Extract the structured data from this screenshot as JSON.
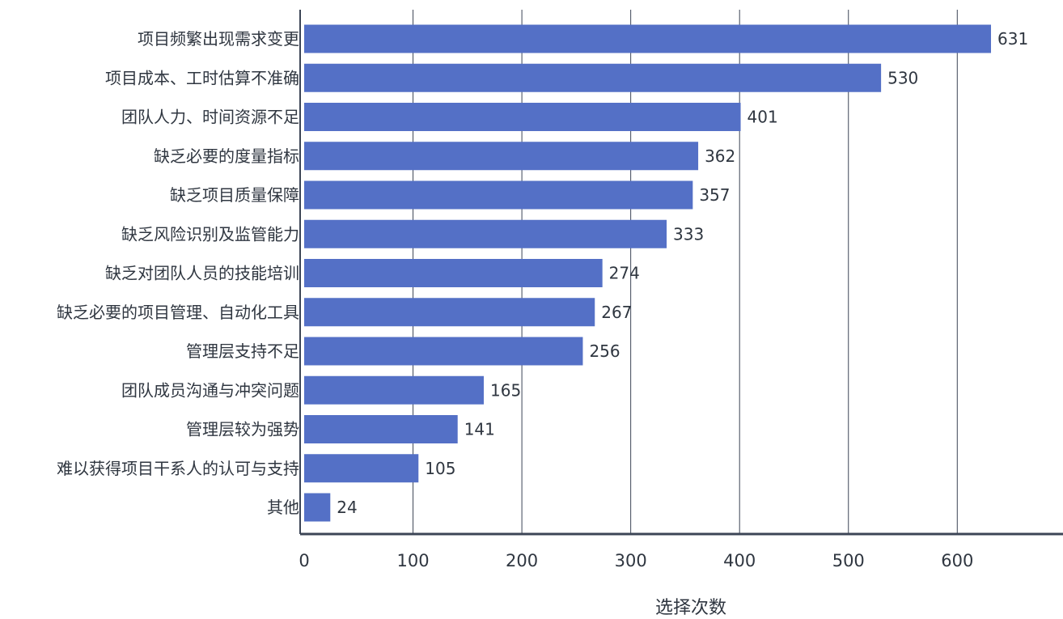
{
  "chart_data": {
    "type": "bar",
    "orientation": "horizontal",
    "categories": [
      "项目频繁出现需求变更",
      "项目成本、工时估算不准确",
      "团队人力、时间资源不足",
      "缺乏必要的度量指标",
      "缺乏项目质量保障",
      "缺乏风险识别及监管能力",
      "缺乏对团队人员的技能培训",
      "缺乏必要的项目管理、自动化工具",
      "管理层支持不足",
      "团队成员沟通与冲突问题",
      "管理层较为强势",
      "难以获得项目干系人的认可与支持",
      "其他"
    ],
    "values": [
      631,
      530,
      401,
      362,
      357,
      333,
      274,
      267,
      256,
      165,
      141,
      105,
      24
    ],
    "value_labels": [
      "631",
      "530",
      "401",
      "362",
      "357",
      "333",
      "274",
      "267",
      "256",
      "165",
      "141",
      "105",
      "24"
    ],
    "xlabel": "选择次数",
    "ylabel": "",
    "title": "",
    "xlim": [
      0,
      690
    ],
    "xticks": [
      0,
      100,
      200,
      300,
      400,
      500,
      600
    ],
    "xtick_labels": [
      "0",
      "100",
      "200",
      "300",
      "400",
      "500",
      "600"
    ],
    "grid": "vertical",
    "legend": "none",
    "bar_color": "#5470c6",
    "axis_color": "#3c4556",
    "text_color": "#2f3640"
  }
}
